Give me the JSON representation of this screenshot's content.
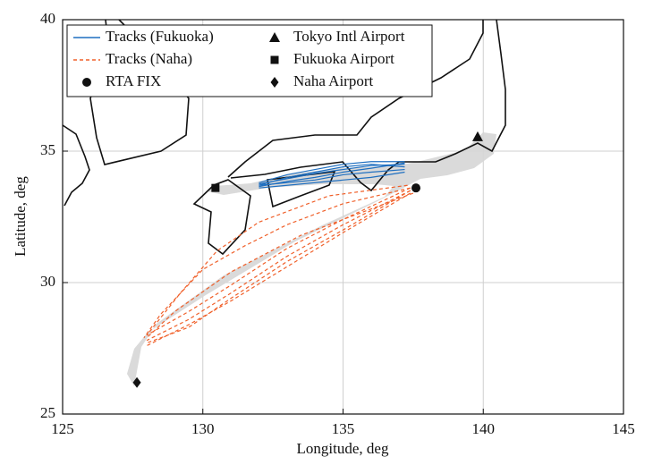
{
  "chart_data": {
    "type": "line",
    "x_label": "Longitude, deg",
    "y_label": "Latitude, deg",
    "xlim": [
      125,
      145
    ],
    "xticks": [
      125,
      130,
      135,
      140,
      145
    ],
    "ylim": [
      25,
      40
    ],
    "yticks": [
      25,
      30,
      35,
      40
    ],
    "grid": true,
    "legend": "upper left",
    "series": [
      {
        "name": "Tracks (Fukuoka)",
        "color": "#1f6fc0",
        "style": "solid",
        "tracks": [
          {
            "x": [
              137.2,
              136,
              135,
              134,
              133,
              132
            ],
            "y": [
              34.5,
              34.45,
              34.3,
              34.15,
              33.95,
              33.75
            ]
          },
          {
            "x": [
              137.2,
              136,
              135,
              134,
              133,
              132
            ],
            "y": [
              34.6,
              34.6,
              34.5,
              34.3,
              34.1,
              33.8
            ]
          },
          {
            "x": [
              137.2,
              136,
              135,
              134,
              133,
              132
            ],
            "y": [
              34.3,
              34.2,
              34.1,
              33.9,
              33.8,
              33.7
            ]
          },
          {
            "x": [
              137.2,
              136,
              135,
              134,
              133,
              132
            ],
            "y": [
              34.4,
              34.5,
              34.4,
              34.2,
              34.0,
              33.7
            ]
          },
          {
            "x": [
              137.2,
              136,
              135,
              134,
              133,
              132
            ],
            "y": [
              34.2,
              34.0,
              33.9,
              33.8,
              33.7,
              33.6
            ]
          },
          {
            "x": [
              137.2,
              136,
              135,
              134,
              133,
              132
            ],
            "y": [
              34.55,
              34.35,
              34.2,
              34.0,
              33.85,
              33.65
            ]
          }
        ]
      },
      {
        "name": "Tracks (Naha)",
        "color": "#f0602a",
        "style": "dashed",
        "tracks": [
          {
            "x": [
              137.4,
              135,
              133,
              131,
              129.5,
              128
            ],
            "y": [
              33.5,
              32.2,
              31.0,
              29.6,
              28.6,
              27.8
            ]
          },
          {
            "x": [
              137.4,
              135,
              133,
              131,
              129.5,
              128
            ],
            "y": [
              33.4,
              31.9,
              30.6,
              29.3,
              28.4,
              27.6
            ]
          },
          {
            "x": [
              137.4,
              135,
              133,
              131,
              129.5,
              128
            ],
            "y": [
              33.6,
              32.4,
              31.3,
              29.9,
              28.9,
              28.0
            ]
          },
          {
            "x": [
              137.4,
              135,
              133,
              131,
              129.5,
              128
            ],
            "y": [
              33.5,
              32.0,
              30.8,
              29.4,
              28.3,
              27.7
            ]
          },
          {
            "x": [
              137.4,
              135,
              133,
              131.5,
              130,
              128.5,
              127.9
            ],
            "y": [
              33.6,
              33.0,
              32.2,
              31.4,
              30.5,
              28.8,
              27.9
            ]
          },
          {
            "x": [
              137.3,
              134.5,
              132,
              130.5,
              129.2,
              128
            ],
            "y": [
              33.7,
              33.3,
              32.3,
              31.2,
              29.6,
              28.0
            ]
          },
          {
            "x": [
              137.5,
              135.5,
              133.5,
              131,
              129,
              128
            ],
            "y": [
              33.4,
              32.6,
              31.8,
              30.4,
              28.9,
              27.9
            ]
          }
        ]
      }
    ],
    "points": [
      {
        "name": "RTA FIX",
        "marker": "circle",
        "color": "#111111",
        "x": 137.6,
        "y": 33.6
      },
      {
        "name": "Tokyo Intl Airport",
        "marker": "triangle",
        "color": "#111111",
        "x": 139.8,
        "y": 35.55
      },
      {
        "name": "Fukuoka Airport",
        "marker": "square",
        "color": "#111111",
        "x": 130.45,
        "y": 33.6
      },
      {
        "name": "Naha Airport",
        "marker": "diamond",
        "color": "#111111",
        "x": 127.65,
        "y": 26.2
      }
    ]
  }
}
